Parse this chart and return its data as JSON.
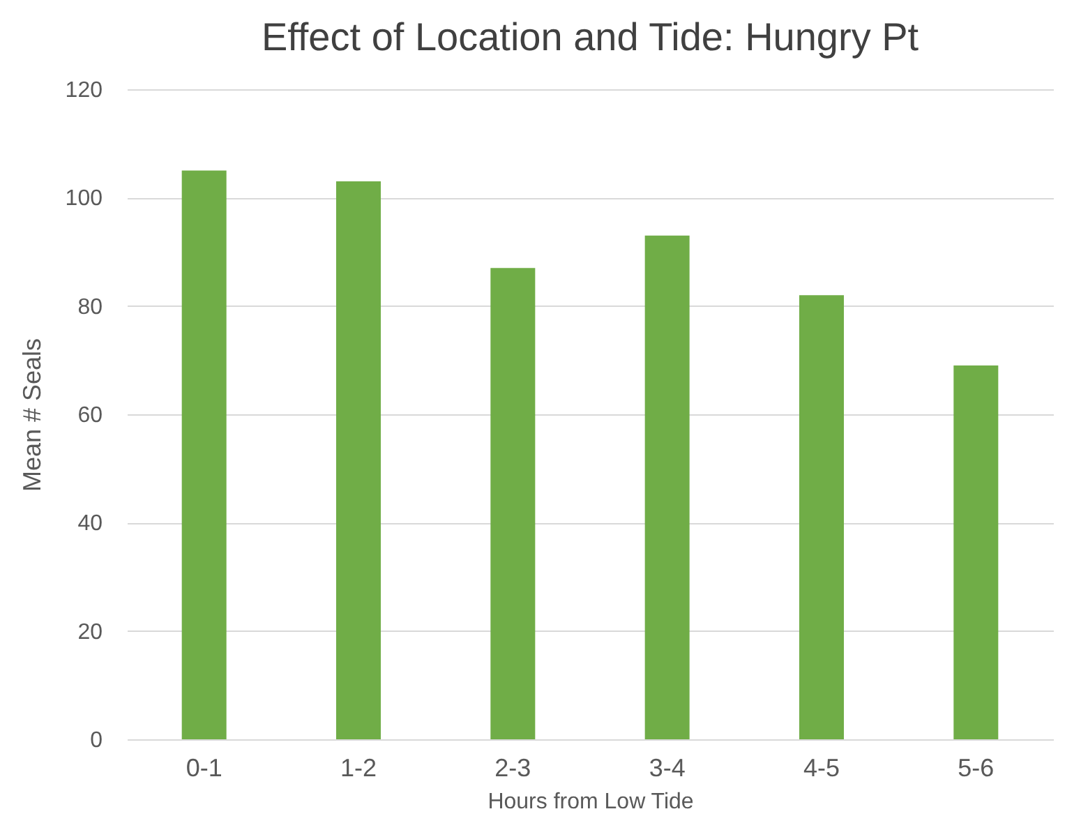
{
  "chart_data": {
    "type": "bar",
    "title": "Effect of Location and Tide: Hungry Pt",
    "xlabel": "Hours from Low Tide",
    "ylabel": "Mean # Seals",
    "categories": [
      "0-1",
      "1-2",
      "2-3",
      "3-4",
      "4-5",
      "5-6"
    ],
    "values": [
      105,
      103,
      87,
      93,
      82,
      69
    ],
    "color": "#70ad47",
    "ylim": [
      0,
      120
    ],
    "yticks": [
      0,
      20,
      40,
      60,
      80,
      100,
      120
    ],
    "grid": "y"
  }
}
